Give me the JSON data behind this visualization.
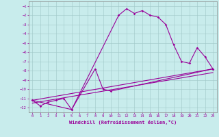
{
  "title": "",
  "xlabel": "Windchill (Refroidissement éolien,°C)",
  "bg_color": "#c8ecec",
  "grid_color": "#a0c8c8",
  "line_color": "#990099",
  "xlim": [
    -0.5,
    23.5
  ],
  "ylim": [
    -12.5,
    -0.5
  ],
  "xticks": [
    0,
    1,
    2,
    3,
    4,
    5,
    6,
    7,
    8,
    9,
    10,
    11,
    12,
    13,
    14,
    15,
    16,
    17,
    18,
    19,
    20,
    21,
    22,
    23
  ],
  "yticks": [
    -1,
    -2,
    -3,
    -4,
    -5,
    -6,
    -7,
    -8,
    -9,
    -10,
    -11,
    -12
  ],
  "series1_x": [
    0,
    1,
    2,
    3,
    4,
    5,
    6,
    11,
    12,
    13,
    14,
    15,
    16,
    17,
    18,
    19,
    20,
    21,
    22,
    23
  ],
  "series1_y": [
    -11.2,
    -11.8,
    -11.4,
    -11.2,
    -11.0,
    -12.2,
    -10.5,
    -2.0,
    -1.3,
    -1.8,
    -1.5,
    -2.0,
    -2.2,
    -3.0,
    -5.2,
    -7.0,
    -7.2,
    -5.5,
    -6.5,
    -7.8
  ],
  "series2_x": [
    0,
    5,
    8,
    9,
    10,
    23
  ],
  "series2_y": [
    -11.2,
    -12.2,
    -7.8,
    -10.0,
    -10.2,
    -7.8
  ],
  "series3_x": [
    0,
    23
  ],
  "series3_y": [
    -11.2,
    -7.8
  ],
  "series4_x": [
    0,
    23
  ],
  "series4_y": [
    -11.5,
    -8.2
  ]
}
